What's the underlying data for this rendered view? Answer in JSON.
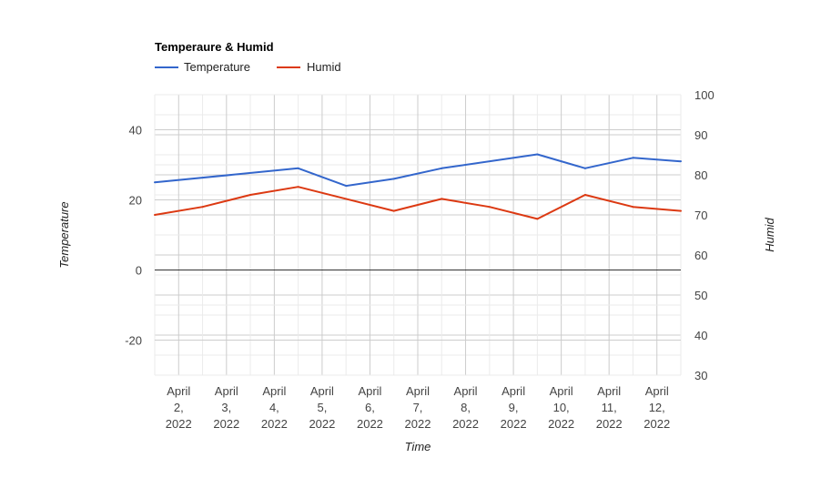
{
  "chart_data": {
    "type": "line",
    "title": "Temperaure & Humid",
    "xlabel": "Time",
    "ylabel_left": "Temperature",
    "ylabel_right": "Humid",
    "legend_position": "top-left",
    "grid": true,
    "x": [
      "2022-04-01T12:00",
      "2022-04-02",
      "2022-04-02T12:00",
      "2022-04-03",
      "2022-04-03T12:00",
      "2022-04-04",
      "2022-04-04T12:00",
      "2022-04-05",
      "2022-04-05T12:00",
      "2022-04-06",
      "2022-04-06T12:00",
      "2022-04-07",
      "2022-04-07T12:00",
      "2022-04-08",
      "2022-04-08T12:00",
      "2022-04-09",
      "2022-04-09T12:00",
      "2022-04-10",
      "2022-04-10T12:00",
      "2022-04-11",
      "2022-04-11T12:00",
      "2022-04-12",
      "2022-04-12T12:00"
    ],
    "x_tick_labels": [
      [
        "April",
        "2,",
        "2022"
      ],
      [
        "April",
        "3,",
        "2022"
      ],
      [
        "April",
        "4,",
        "2022"
      ],
      [
        "April",
        "5,",
        "2022"
      ],
      [
        "April",
        "6,",
        "2022"
      ],
      [
        "April",
        "7,",
        "2022"
      ],
      [
        "April",
        "8,",
        "2022"
      ],
      [
        "April",
        "9,",
        "2022"
      ],
      [
        "April",
        "10,",
        "2022"
      ],
      [
        "April",
        "11,",
        "2022"
      ],
      [
        "April",
        "12,",
        "2022"
      ]
    ],
    "series": [
      {
        "name": "Temperature",
        "axis": "left",
        "color": "#3366cc",
        "points": [
          [
            "2022-04-01T12:00",
            25
          ],
          [
            "2022-04-04T12:00",
            29
          ],
          [
            "2022-04-05T12:00",
            24
          ],
          [
            "2022-04-06T12:00",
            26
          ],
          [
            "2022-04-07T12:00",
            29
          ],
          [
            "2022-04-09T12:00",
            33
          ],
          [
            "2022-04-10T12:00",
            29
          ],
          [
            "2022-04-11T12:00",
            32
          ],
          [
            "2022-04-12T12:00",
            31
          ]
        ]
      },
      {
        "name": "Humid",
        "axis": "right",
        "color": "#dc3912",
        "points": [
          [
            "2022-04-01T12:00",
            70
          ],
          [
            "2022-04-02T12:00",
            72
          ],
          [
            "2022-04-03T12:00",
            75
          ],
          [
            "2022-04-04T12:00",
            77
          ],
          [
            "2022-04-06T12:00",
            71
          ],
          [
            "2022-04-07T12:00",
            74
          ],
          [
            "2022-04-08T12:00",
            72
          ],
          [
            "2022-04-09T12:00",
            69
          ],
          [
            "2022-04-10T12:00",
            75
          ],
          [
            "2022-04-11T12:00",
            72
          ],
          [
            "2022-04-12T12:00",
            71
          ]
        ]
      }
    ],
    "y_left": {
      "ticks": [
        -20,
        0,
        20,
        40
      ],
      "range": [
        -30,
        50
      ]
    },
    "y_right": {
      "ticks": [
        30,
        40,
        50,
        60,
        70,
        80,
        90,
        100
      ],
      "range": [
        30,
        100
      ]
    }
  }
}
